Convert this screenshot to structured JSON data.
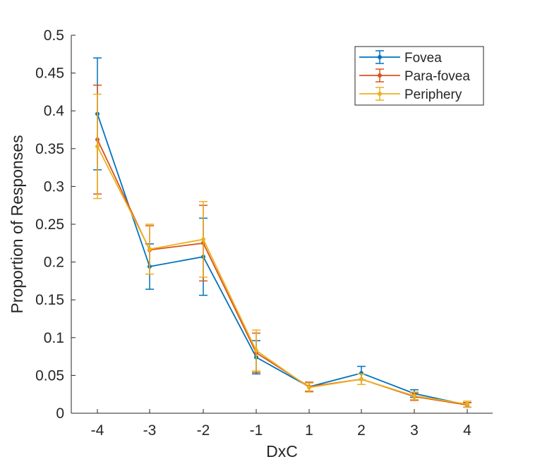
{
  "chart_data": {
    "type": "line",
    "xlabel": "DxC",
    "ylabel": "Proportion of Responses",
    "categories": [
      "-4",
      "-3",
      "-2",
      "-1",
      "1",
      "2",
      "3",
      "4"
    ],
    "ylim": [
      0,
      0.5
    ],
    "yticks": [
      "0",
      "0.05",
      "0.1",
      "0.15",
      "0.2",
      "0.25",
      "0.3",
      "0.35",
      "0.4",
      "0.45",
      "0.5"
    ],
    "grid": false,
    "legend_position": "top-right",
    "series": [
      {
        "name": "Fovea",
        "color": "#0072BD",
        "values": [
          0.396,
          0.194,
          0.207,
          0.074,
          0.035,
          0.053,
          0.026,
          0.011
        ],
        "err": [
          0.074,
          0.03,
          0.051,
          0.022,
          0.006,
          0.009,
          0.005,
          0.003
        ]
      },
      {
        "name": "Para-fovea",
        "color": "#D95319",
        "values": [
          0.362,
          0.216,
          0.225,
          0.08,
          0.035,
          0.045,
          0.022,
          0.011
        ],
        "err": [
          0.072,
          0.032,
          0.05,
          0.026,
          0.006,
          0.007,
          0.005,
          0.003
        ]
      },
      {
        "name": "Periphery",
        "color": "#EDB120",
        "values": [
          0.353,
          0.217,
          0.23,
          0.083,
          0.034,
          0.045,
          0.023,
          0.012
        ],
        "err": [
          0.069,
          0.033,
          0.05,
          0.027,
          0.006,
          0.007,
          0.005,
          0.004
        ]
      }
    ]
  }
}
